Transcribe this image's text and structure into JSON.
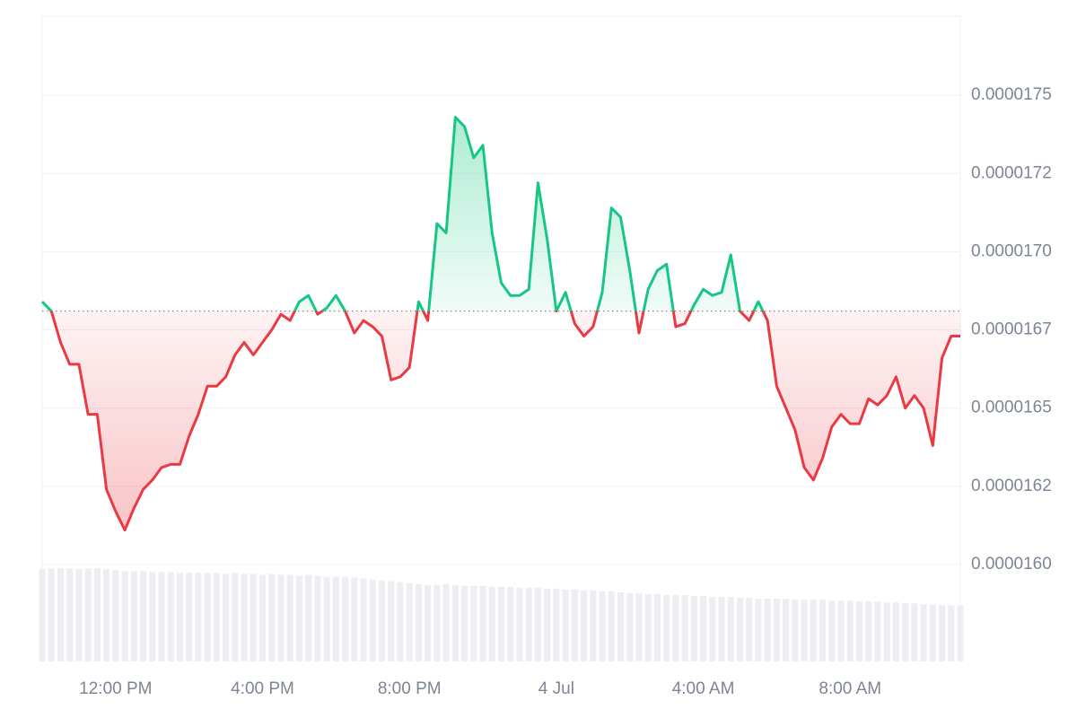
{
  "chart_data": {
    "type": "baseline-area",
    "categories": [
      null,
      null,
      null,
      null,
      null,
      null,
      null,
      null,
      "12:00 PM",
      null,
      null,
      null,
      null,
      null,
      null,
      null,
      null,
      null,
      null,
      null,
      null,
      null,
      null,
      null,
      "4:00 PM",
      null,
      null,
      null,
      null,
      null,
      null,
      null,
      null,
      null,
      null,
      null,
      null,
      null,
      null,
      null,
      "8:00 PM",
      null,
      null,
      null,
      null,
      null,
      null,
      null,
      null,
      null,
      null,
      null,
      null,
      null,
      null,
      null,
      "4 Jul",
      null,
      null,
      null,
      null,
      null,
      null,
      null,
      null,
      null,
      null,
      null,
      null,
      null,
      null,
      null,
      "4:00 AM",
      null,
      null,
      null,
      null,
      null,
      null,
      null,
      null,
      null,
      null,
      null,
      null,
      null,
      null,
      null,
      "8:00 AM",
      null,
      null,
      null,
      null,
      null,
      null,
      null,
      null,
      null,
      null,
      null,
      null
    ],
    "series": [
      {
        "color": "#16c784",
        "down_color": "#ea3943",
        "values": [
          1.684e-05,
          1.681e-05,
          1.671e-05,
          1.664e-05,
          1.664e-05,
          1.648e-05,
          1.648e-05,
          1.624e-05,
          1.617e-05,
          1.611e-05,
          1.618e-05,
          1.624e-05,
          1.627e-05,
          1.631e-05,
          1.632e-05,
          1.632e-05,
          1.641e-05,
          1.648e-05,
          1.657e-05,
          1.657e-05,
          1.66e-05,
          1.667e-05,
          1.671e-05,
          1.667e-05,
          1.671e-05,
          1.675e-05,
          1.68e-05,
          1.678e-05,
          1.684e-05,
          1.686e-05,
          1.68e-05,
          1.682e-05,
          1.686e-05,
          1.681e-05,
          1.674e-05,
          1.678e-05,
          1.676e-05,
          1.673e-05,
          1.659e-05,
          1.66e-05,
          1.663e-05,
          1.684e-05,
          1.678e-05,
          1.709e-05,
          1.706e-05,
          1.743e-05,
          1.74e-05,
          1.73e-05,
          1.734e-05,
          1.706e-05,
          1.69e-05,
          1.686e-05,
          1.686e-05,
          1.688e-05,
          1.722e-05,
          1.704e-05,
          1.681e-05,
          1.687e-05,
          1.677e-05,
          1.673e-05,
          1.676e-05,
          1.687e-05,
          1.714e-05,
          1.711e-05,
          1.694e-05,
          1.674e-05,
          1.688e-05,
          1.694e-05,
          1.696e-05,
          1.676e-05,
          1.677e-05,
          1.683e-05,
          1.688e-05,
          1.686e-05,
          1.687e-05,
          1.699e-05,
          1.681e-05,
          1.678e-05,
          1.684e-05,
          1.678e-05,
          1.657e-05,
          1.65e-05,
          1.643e-05,
          1.631e-05,
          1.627e-05,
          1.634e-05,
          1.644e-05,
          1.648e-05,
          1.645e-05,
          1.645e-05,
          1.653e-05,
          1.651e-05,
          1.654e-05,
          1.66e-05,
          1.65e-05,
          1.654e-05,
          1.65e-05,
          1.638e-05,
          1.666e-05,
          1.673e-05,
          1.673e-05
        ]
      },
      {
        "color": "#eceef2",
        "axis": "y2",
        "values": [
          100,
          101,
          101,
          101,
          100,
          101,
          101,
          100,
          99,
          98,
          98,
          98,
          97,
          97,
          97,
          96,
          96,
          96,
          96,
          96,
          95,
          96,
          95,
          95,
          94,
          95,
          94,
          94,
          93,
          94,
          93,
          92,
          92,
          92,
          91,
          90,
          89,
          88,
          87,
          86,
          85,
          84,
          83,
          83,
          84,
          83,
          82,
          82,
          82,
          81,
          81,
          81,
          80,
          80,
          80,
          79,
          79,
          78,
          78,
          77,
          77,
          76,
          76,
          75,
          74,
          74,
          73,
          73,
          72,
          72,
          72,
          71,
          71,
          70,
          70,
          70,
          69,
          69,
          68,
          68,
          68,
          68,
          67,
          67,
          67,
          67,
          66,
          66,
          66,
          65,
          65,
          65,
          64,
          64,
          63,
          63,
          62,
          62,
          61,
          61,
          61
        ]
      }
    ],
    "baseline": 1.681e-05,
    "ylim": [
      1.569e-05,
      1.7753e-05
    ],
    "yticks": [
      {
        "value": 1.6e-05,
        "label": "0.0000160"
      },
      {
        "value": 1.625e-05,
        "label": "0.0000162"
      },
      {
        "value": 1.65e-05,
        "label": "0.0000165"
      },
      {
        "value": 1.675e-05,
        "label": "0.0000167"
      },
      {
        "value": 1.7e-05,
        "label": "0.0000170"
      },
      {
        "value": 1.725e-05,
        "label": "0.0000172"
      },
      {
        "value": 1.75e-05,
        "label": "0.0000175"
      }
    ],
    "y2lim": [
      0,
      700
    ],
    "grid": true
  }
}
